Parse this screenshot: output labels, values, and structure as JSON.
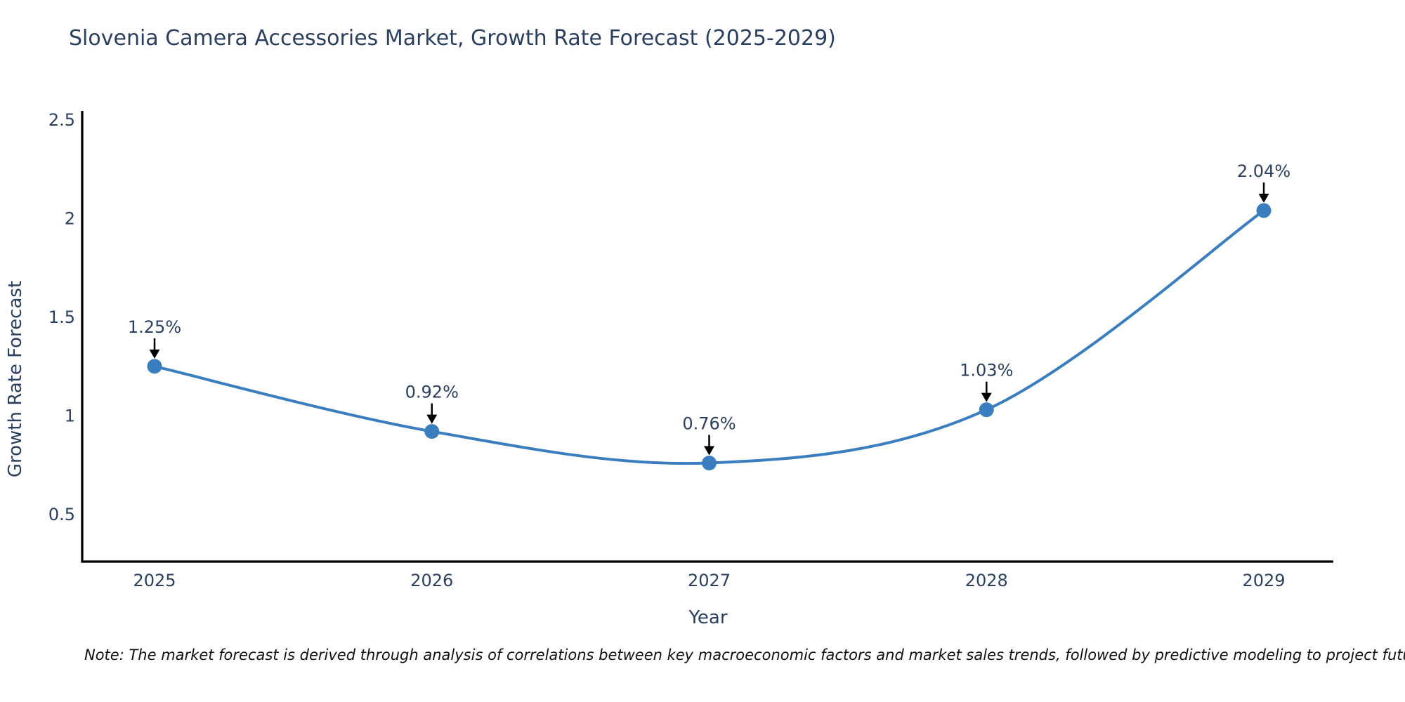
{
  "chart_data": {
    "type": "line",
    "title": "Slovenia Camera Accessories Market, Growth Rate Forecast (2025-2029)",
    "xlabel": "Year",
    "ylabel": "Growth Rate Forecast",
    "categories": [
      "2025",
      "2026",
      "2027",
      "2028",
      "2029"
    ],
    "series": [
      {
        "name": "Growth Rate Forecast",
        "values": [
          1.25,
          0.92,
          0.76,
          1.03,
          2.04
        ],
        "point_labels": [
          "1.25%",
          "0.92%",
          "0.76%",
          "1.03%",
          "2.04%"
        ]
      }
    ],
    "yticks": [
      0.5,
      1,
      1.5,
      2,
      2.5
    ],
    "ylim": [
      0.26,
      2.545
    ],
    "grid": false,
    "legend": "none",
    "line_shape": "spline",
    "colors": {
      "line": "#3a7ebf",
      "marker": "#3a7ebf",
      "arrow": "#000000",
      "axis": "#000000",
      "text": "#2a3f5f"
    },
    "note": "Note: The market forecast is derived through analysis of correlations between key macroeconomic factors and market sales trends, followed by predictive modeling to project future sales"
  }
}
